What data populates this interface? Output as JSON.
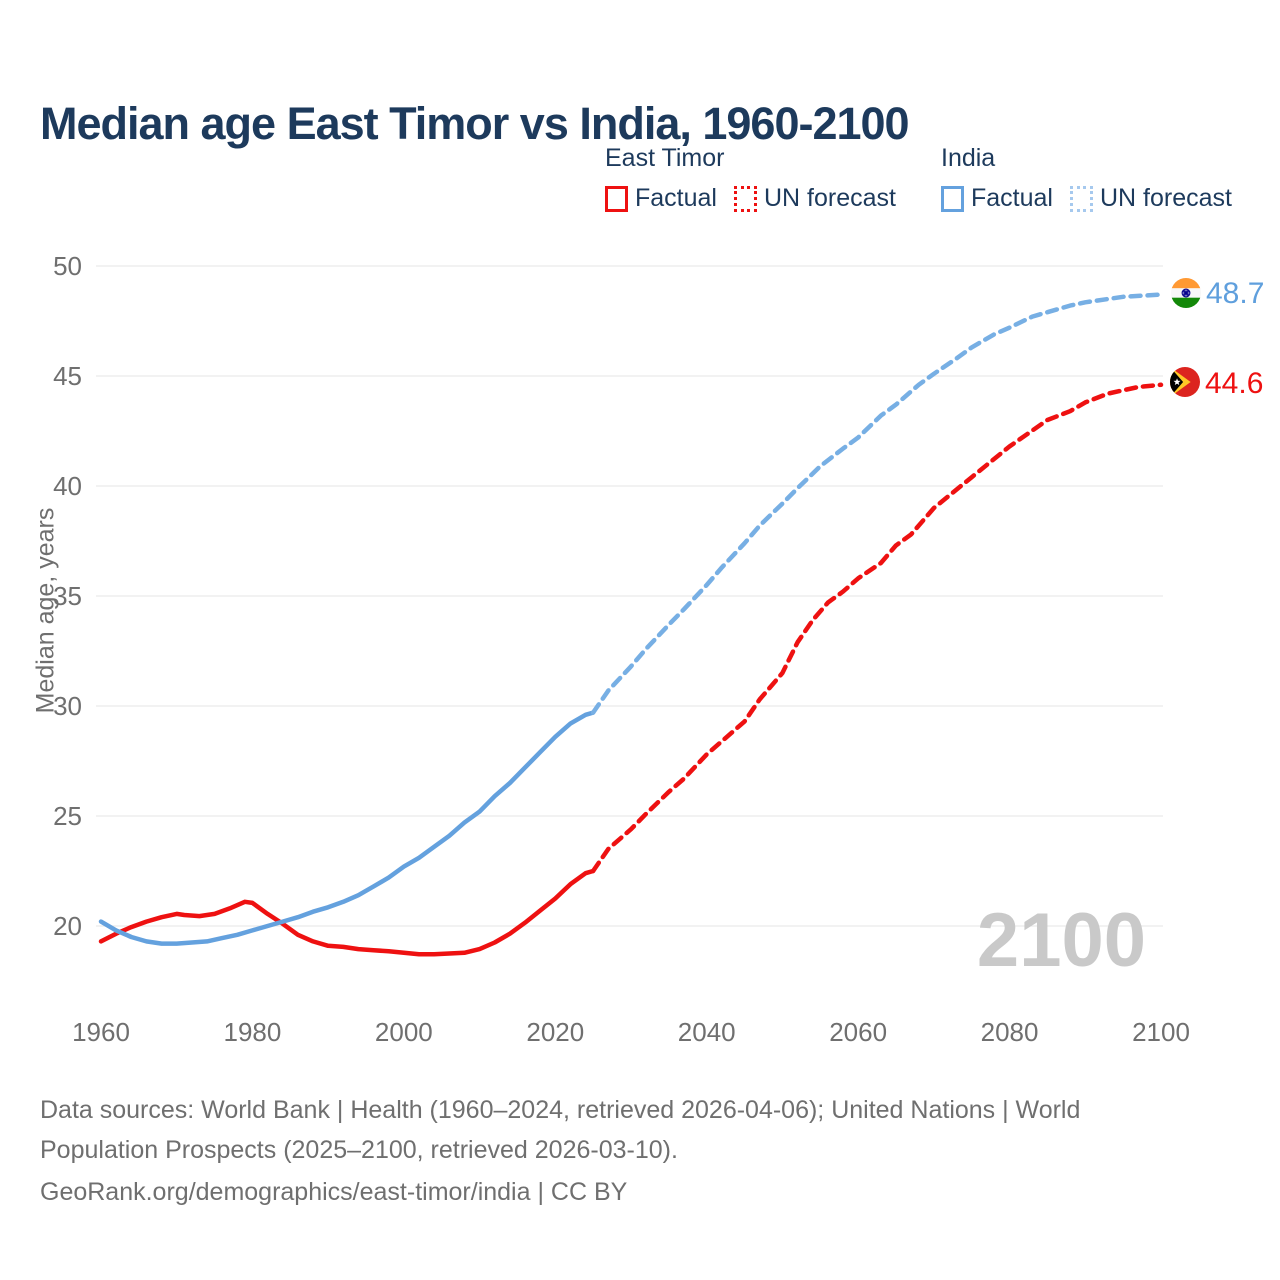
{
  "title": "Median age East Timor vs India, 1960-2100",
  "legend": {
    "groups": [
      {
        "name": "East Timor",
        "items": [
          {
            "label": "Factual",
            "style": "solid"
          },
          {
            "label": "UN forecast",
            "style": "dotted"
          }
        ]
      },
      {
        "name": "India",
        "items": [
          {
            "label": "Factual",
            "style": "solid"
          },
          {
            "label": "UN forecast",
            "style": "dotted"
          }
        ]
      }
    ]
  },
  "colors": {
    "east_timor": "#ee1111",
    "india": "#64a1de",
    "india_forecast": "#77afe4",
    "title_text": "#1d3a5c",
    "tick_text": "#6f6f6f",
    "gridline": "#e9e9e9",
    "watermark": "#c9c9c9"
  },
  "chart_data": {
    "type": "line",
    "title": "Median age East Timor vs India, 1960-2100",
    "xlabel": "",
    "ylabel": "Median age, years",
    "x_ticks": [
      1960,
      1980,
      2000,
      2020,
      2040,
      2060,
      2080,
      2100
    ],
    "y_ticks": [
      20,
      25,
      30,
      35,
      40,
      45,
      50
    ],
    "xlim": [
      1960,
      2100
    ],
    "ylim": [
      17.5,
      50.5
    ],
    "grid": "horizontal",
    "legend_position": "top-right",
    "watermark": "2100",
    "forecast_start_year": 2025,
    "series": [
      {
        "name": "East Timor",
        "color": "#ee1111",
        "forecast_color": "#ee1111",
        "end_label": "44.6",
        "flag": "east-timor",
        "factual": [
          [
            1960,
            19.3
          ],
          [
            1962,
            19.65
          ],
          [
            1964,
            19.95
          ],
          [
            1966,
            20.2
          ],
          [
            1968,
            20.4
          ],
          [
            1970,
            20.55
          ],
          [
            1971,
            20.5
          ],
          [
            1973,
            20.45
          ],
          [
            1975,
            20.55
          ],
          [
            1977,
            20.8
          ],
          [
            1979,
            21.1
          ],
          [
            1980,
            21.05
          ],
          [
            1982,
            20.55
          ],
          [
            1984,
            20.1
          ],
          [
            1986,
            19.6
          ],
          [
            1988,
            19.3
          ],
          [
            1990,
            19.1
          ],
          [
            1992,
            19.05
          ],
          [
            1994,
            18.95
          ],
          [
            1996,
            18.9
          ],
          [
            1998,
            18.85
          ],
          [
            2000,
            18.78
          ],
          [
            2002,
            18.72
          ],
          [
            2004,
            18.72
          ],
          [
            2006,
            18.75
          ],
          [
            2008,
            18.78
          ],
          [
            2010,
            18.95
          ],
          [
            2012,
            19.25
          ],
          [
            2014,
            19.65
          ],
          [
            2016,
            20.15
          ],
          [
            2018,
            20.7
          ],
          [
            2020,
            21.25
          ],
          [
            2022,
            21.9
          ],
          [
            2024,
            22.4
          ],
          [
            2025,
            22.5
          ]
        ],
        "forecast": [
          [
            2025,
            22.5
          ],
          [
            2027,
            23.5
          ],
          [
            2030,
            24.4
          ],
          [
            2032,
            25.1
          ],
          [
            2035,
            26.1
          ],
          [
            2037,
            26.7
          ],
          [
            2040,
            27.8
          ],
          [
            2042,
            28.4
          ],
          [
            2045,
            29.3
          ],
          [
            2047,
            30.3
          ],
          [
            2050,
            31.5
          ],
          [
            2052,
            32.9
          ],
          [
            2054,
            33.9
          ],
          [
            2056,
            34.7
          ],
          [
            2058,
            35.2
          ],
          [
            2060,
            35.8
          ],
          [
            2063,
            36.5
          ],
          [
            2065,
            37.3
          ],
          [
            2067,
            37.8
          ],
          [
            2070,
            39.0
          ],
          [
            2075,
            40.4
          ],
          [
            2080,
            41.8
          ],
          [
            2085,
            43.0
          ],
          [
            2088,
            43.4
          ],
          [
            2090,
            43.8
          ],
          [
            2093,
            44.2
          ],
          [
            2095,
            44.35
          ],
          [
            2097,
            44.5
          ],
          [
            2100,
            44.6
          ]
        ]
      },
      {
        "name": "India",
        "color": "#64a1de",
        "forecast_color": "#77afe4",
        "end_label": "48.7",
        "flag": "india",
        "factual": [
          [
            1960,
            20.2
          ],
          [
            1962,
            19.8
          ],
          [
            1964,
            19.5
          ],
          [
            1966,
            19.3
          ],
          [
            1968,
            19.2
          ],
          [
            1970,
            19.2
          ],
          [
            1972,
            19.25
          ],
          [
            1974,
            19.3
          ],
          [
            1976,
            19.45
          ],
          [
            1978,
            19.6
          ],
          [
            1980,
            19.8
          ],
          [
            1982,
            20.0
          ],
          [
            1984,
            20.2
          ],
          [
            1986,
            20.4
          ],
          [
            1988,
            20.65
          ],
          [
            1990,
            20.85
          ],
          [
            1992,
            21.1
          ],
          [
            1994,
            21.4
          ],
          [
            1996,
            21.8
          ],
          [
            1998,
            22.2
          ],
          [
            2000,
            22.7
          ],
          [
            2002,
            23.1
          ],
          [
            2004,
            23.6
          ],
          [
            2006,
            24.1
          ],
          [
            2008,
            24.7
          ],
          [
            2010,
            25.2
          ],
          [
            2012,
            25.9
          ],
          [
            2014,
            26.5
          ],
          [
            2016,
            27.2
          ],
          [
            2018,
            27.9
          ],
          [
            2020,
            28.6
          ],
          [
            2022,
            29.2
          ],
          [
            2024,
            29.6
          ],
          [
            2025,
            29.7
          ]
        ],
        "forecast": [
          [
            2025,
            29.7
          ],
          [
            2027,
            30.7
          ],
          [
            2030,
            31.8
          ],
          [
            2032,
            32.6
          ],
          [
            2035,
            33.7
          ],
          [
            2037,
            34.4
          ],
          [
            2040,
            35.5
          ],
          [
            2042,
            36.3
          ],
          [
            2045,
            37.4
          ],
          [
            2047,
            38.2
          ],
          [
            2050,
            39.2
          ],
          [
            2052,
            39.9
          ],
          [
            2055,
            40.9
          ],
          [
            2058,
            41.7
          ],
          [
            2060,
            42.2
          ],
          [
            2063,
            43.2
          ],
          [
            2065,
            43.7
          ],
          [
            2068,
            44.6
          ],
          [
            2070,
            45.1
          ],
          [
            2073,
            45.8
          ],
          [
            2075,
            46.3
          ],
          [
            2078,
            46.9
          ],
          [
            2080,
            47.2
          ],
          [
            2083,
            47.7
          ],
          [
            2085,
            47.9
          ],
          [
            2088,
            48.2
          ],
          [
            2090,
            48.35
          ],
          [
            2093,
            48.5
          ],
          [
            2095,
            48.6
          ],
          [
            2100,
            48.7
          ]
        ]
      }
    ]
  },
  "footer": {
    "line1": "Data sources: World Bank | Health (1960–2024, retrieved 2026-04-06); United Nations | World",
    "line2": "Population Prospects (2025–2100, retrieved 2026-03-10).",
    "line3": "GeoRank.org/demographics/east-timor/india | CC BY"
  }
}
